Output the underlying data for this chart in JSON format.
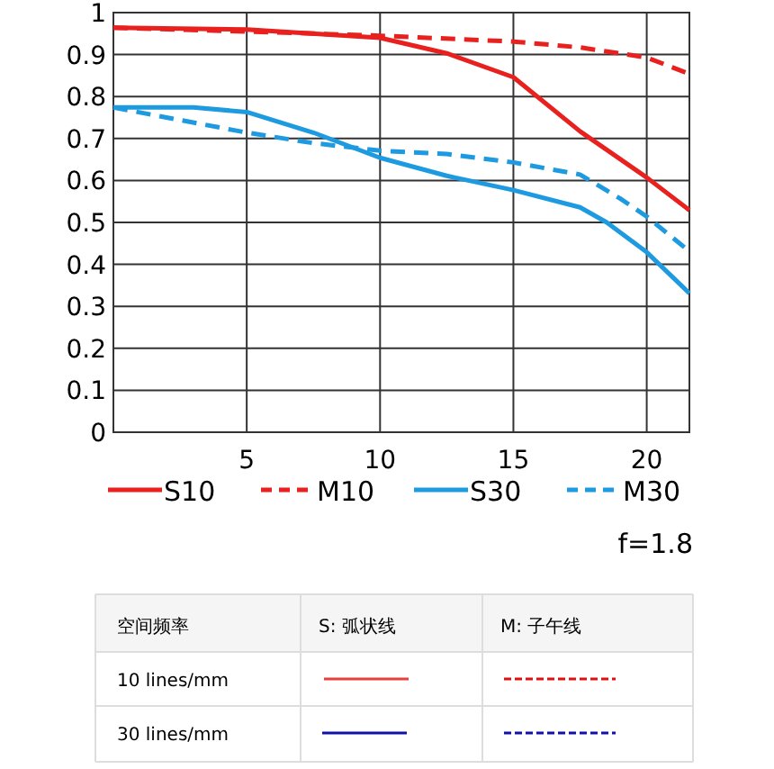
{
  "chart_data": {
    "type": "line",
    "xlim": [
      0,
      21.6
    ],
    "xticks": [
      {
        "value": 0,
        "label": null
      },
      5,
      10,
      15,
      20
    ],
    "ylim": [
      0,
      1
    ],
    "yticks": [
      0,
      0.1,
      0.2,
      0.3,
      0.4,
      0.5,
      0.6,
      0.7,
      0.8,
      0.9,
      1
    ],
    "grid": true,
    "legend": "bottom",
    "series": [
      {
        "name": "S10",
        "color": "#e8201e",
        "line_style": "solid",
        "x": [
          0,
          5,
          10,
          12.5,
          15,
          17.5,
          20,
          21.6
        ],
        "values": [
          0.964,
          0.96,
          0.94,
          0.903,
          0.846,
          0.717,
          0.607,
          0.529
        ]
      },
      {
        "name": "M10",
        "color": "#e8201e",
        "line_style": "dashed",
        "x": [
          0,
          5,
          10,
          15,
          17.5,
          20,
          21.6
        ],
        "values": [
          0.964,
          0.955,
          0.945,
          0.931,
          0.917,
          0.893,
          0.854
        ]
      },
      {
        "name": "S30",
        "color": "#1e9be0",
        "line_style": "solid",
        "x": [
          0,
          3,
          5,
          7.5,
          10,
          12.5,
          15,
          17.5,
          18.5,
          20,
          21.6
        ],
        "values": [
          0.774,
          0.774,
          0.763,
          0.714,
          0.654,
          0.611,
          0.577,
          0.536,
          0.5,
          0.429,
          0.331
        ]
      },
      {
        "name": "M30",
        "color": "#1e9be0",
        "line_style": "dashed",
        "x": [
          0,
          5,
          7.5,
          10,
          12.5,
          15,
          17.5,
          19,
          20,
          21.6
        ],
        "values": [
          0.774,
          0.714,
          0.689,
          0.671,
          0.663,
          0.643,
          0.614,
          0.557,
          0.514,
          0.431
        ]
      }
    ],
    "annotations": [
      "f=1.8",
      "空间频率",
      "S: 弧状线",
      "M: 子午线",
      "10 lines/mm",
      "30 lines/mm"
    ]
  }
}
